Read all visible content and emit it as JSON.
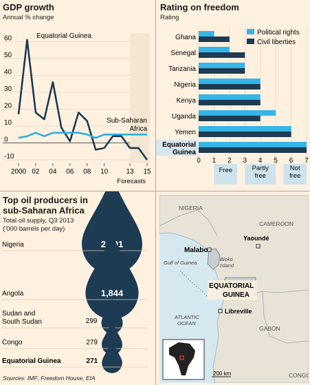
{
  "gdp": {
    "title": "GDP growth",
    "subtitle": "Annual % change",
    "forecast_label": "Forecasts",
    "chart_data": {
      "type": "line",
      "x": [
        2000,
        2001,
        2002,
        2003,
        2004,
        2005,
        2006,
        2007,
        2008,
        2009,
        2010,
        2011,
        2012,
        2013,
        2014,
        2015
      ],
      "series": [
        {
          "name": "Equatorial Guinea",
          "values": [
            17,
            61,
            18,
            14,
            36,
            9,
            1,
            18,
            13,
            -4,
            -3,
            4,
            4,
            -3,
            -3,
            -10
          ]
        },
        {
          "name": "Sub-Saharan Africa",
          "values": [
            3,
            4,
            6,
            4,
            6,
            6,
            6,
            6,
            5,
            3,
            5,
            5,
            5,
            5,
            5,
            5
          ]
        }
      ],
      "xticks": [
        "2000",
        "02",
        "04",
        "06",
        "08",
        "10",
        "13",
        "15"
      ],
      "ytick_labels": [
        "60",
        "50",
        "40",
        "30",
        "20",
        "10",
        "0",
        "-10"
      ],
      "ylim": [
        -12,
        65
      ],
      "colors": {
        "eq": "#1e3a52",
        "ssa": "#2aaee4"
      }
    }
  },
  "freedom": {
    "title": "Rating on freedom",
    "subtitle": "Rating",
    "chart_data": {
      "type": "bar",
      "categories": [
        "Ghana",
        "Senegal",
        "Tanzania",
        "Nigeria",
        "Kenya",
        "Uganda",
        "Yemen",
        "Equatorial Guinea"
      ],
      "series": [
        {
          "name": "Political rights",
          "values": [
            1,
            2,
            3,
            4,
            4,
            5,
            6,
            7
          ]
        },
        {
          "name": "Civil liberties",
          "values": [
            2,
            3,
            3,
            4,
            4,
            4,
            6,
            7
          ]
        }
      ],
      "xticks": [
        "0",
        "1",
        "2",
        "3",
        "4",
        "5",
        "6",
        "7"
      ],
      "xlim": [
        0,
        7
      ],
      "bands": [
        {
          "label": "Free",
          "from": 1,
          "to": 2.5
        },
        {
          "label": "Partly free",
          "from": 3,
          "to": 5
        },
        {
          "label": "Not free",
          "from": 5.5,
          "to": 7
        }
      ],
      "colors": {
        "pr": "#35b5e8",
        "cl": "#1d3b52",
        "band": "#cfe3ec"
      }
    }
  },
  "oil": {
    "title_line1": "Top oil producers in",
    "title_line2": "sub-Saharan Africa",
    "subtitle_line1": "Total oil supply, Q3 2013",
    "subtitle_line2": "(’000 barrels per day)",
    "chart_data": {
      "type": "bubble",
      "categories": [
        "Nigeria",
        "Angola",
        "Sudan and South Sudan",
        "Congo",
        "Equatorial Guinea"
      ],
      "values": [
        2401,
        1844,
        299,
        279,
        271
      ],
      "value_labels": [
        "2,401",
        "1,844",
        "299",
        "279",
        "271"
      ],
      "category_labels": [
        "Nigeria",
        "Angola",
        "Sudan and\nSouth Sudan",
        "Congo",
        "Equatorial Guinea"
      ],
      "color": "#1d3b52"
    }
  },
  "map": {
    "labels": {
      "nigeria": "NIGERIA",
      "cameroon": "CAMEROON",
      "yaounde": "Yaoundé",
      "malabo": "Malabo",
      "bioko": "Bioko Island",
      "gulf": "Gulf of Guinea",
      "eq1": "EQUATORIAL",
      "eq2": "GUINEA",
      "libreville": "Libreville",
      "atlantic": "ATLANTIC OCEAN",
      "gabon": "GABON",
      "congo": "CONGO",
      "scale": "200 km"
    },
    "colors": {
      "sea": "#d6e8ef",
      "land": "#e9e2d6",
      "country": "#c8ced2"
    }
  },
  "sources": "Sources: IMF; Freedom House; EIA"
}
